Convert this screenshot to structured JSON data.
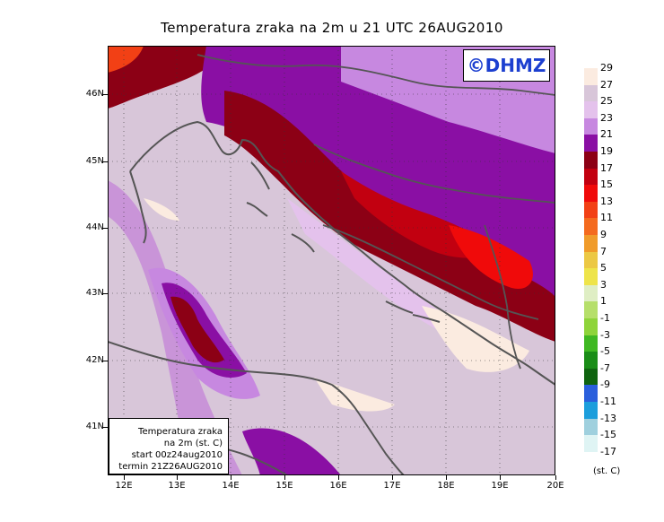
{
  "title": "Temperatura zraka na 2m u 21 UTC 26AUG2010",
  "logo": "©DHMZ",
  "info_box": {
    "line1": "Temperatura zraka",
    "line2": "na 2m (st. C)",
    "line3": "start 00z24aug2010",
    "line4": "termin 21Z26AUG2010"
  },
  "lat_labels": [
    "46N",
    "45N",
    "44N",
    "43N",
    "42N",
    "41N"
  ],
  "lon_labels": [
    "12E",
    "13E",
    "14E",
    "15E",
    "16E",
    "17E",
    "18E",
    "19E",
    "20E"
  ],
  "legend": {
    "labels": [
      "29",
      "27",
      "25",
      "23",
      "21",
      "19",
      "17",
      "15",
      "13",
      "11",
      "9",
      "7",
      "5",
      "3",
      "1",
      "-1",
      "-3",
      "-5",
      "-7",
      "-9",
      "-11",
      "-13",
      "-15",
      "-17"
    ],
    "colors": [
      "#fbebe0",
      "#d8c6d9",
      "#e4c2ec",
      "#c788e0",
      "#8a0fa4",
      "#8c0015",
      "#c20010",
      "#f00a0a",
      "#f24015",
      "#f46a1e",
      "#f09b2a",
      "#ecc844",
      "#eee44a",
      "#dfeec4",
      "#b6df6a",
      "#8ed43a",
      "#3fb822",
      "#1a8d17",
      "#0f640f",
      "#2a5fdc",
      "#1c9edc",
      "#9fd0de",
      "#dff4f4",
      "#ffffff"
    ],
    "unit": "(st. C)"
  }
}
